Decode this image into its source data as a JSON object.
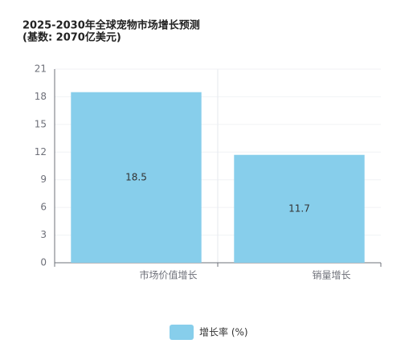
{
  "chart_data": {
    "type": "bar",
    "title": "2025-2030年全球宠物市场增长预测",
    "subtitle": "(基数: 2070亿美元)",
    "categories": [
      "市场价值增长",
      "销量增长"
    ],
    "series": [
      {
        "name": "增长率 (%)",
        "color": "#87ceeb",
        "values": [
          18.5,
          11.7
        ]
      }
    ],
    "ylim": [
      0,
      21
    ],
    "yticks": [
      0,
      3,
      6,
      9,
      12,
      15,
      18,
      21
    ],
    "grid": true,
    "legend": "bottom"
  }
}
